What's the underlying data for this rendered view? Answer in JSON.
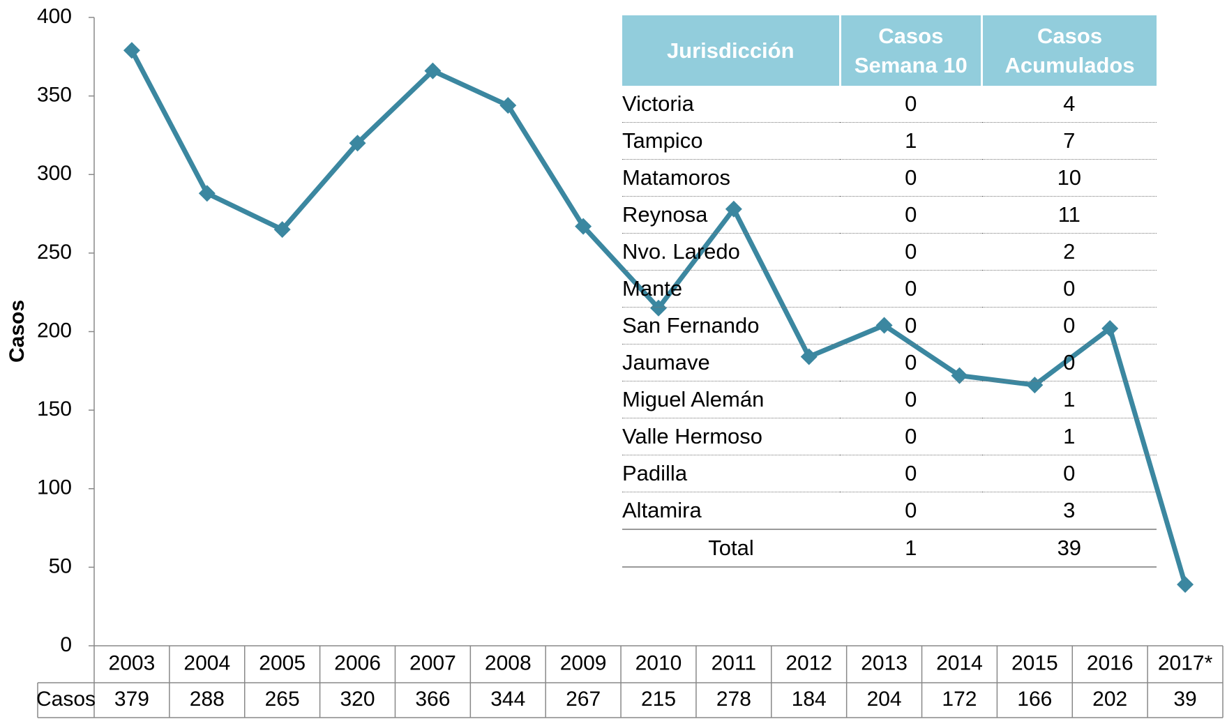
{
  "chart_data": {
    "type": "line",
    "ylabel": "Casos",
    "categories": [
      "2003",
      "2004",
      "2005",
      "2006",
      "2007",
      "2008",
      "2009",
      "2010",
      "2011",
      "2012",
      "2013",
      "2014",
      "2015",
      "2016",
      "2017*"
    ],
    "series": [
      {
        "name": "Casos",
        "color": "#3b87a0",
        "values": [
          379,
          288,
          265,
          320,
          366,
          344,
          267,
          215,
          278,
          184,
          204,
          172,
          166,
          202,
          39
        ]
      }
    ],
    "ylim": [
      0,
      400
    ],
    "yticks": [
      0,
      50,
      100,
      150,
      200,
      250,
      300,
      350,
      400
    ]
  },
  "table": {
    "headers": [
      "Jurisdicción",
      "Casos Semana 10",
      "Casos Acumulados"
    ],
    "rows": [
      [
        "Victoria",
        0,
        4
      ],
      [
        "Tampico",
        1,
        7
      ],
      [
        "Matamoros",
        0,
        10
      ],
      [
        "Reynosa",
        0,
        11
      ],
      [
        "Nvo. Laredo",
        0,
        2
      ],
      [
        "Mante",
        0,
        0
      ],
      [
        "San Fernando",
        0,
        0
      ],
      [
        "Jaumave",
        0,
        0
      ],
      [
        "Miguel Alemán",
        0,
        1
      ],
      [
        "Valle Hermoso",
        0,
        1
      ],
      [
        "Padilla",
        0,
        0
      ],
      [
        "Altamira",
        0,
        3
      ]
    ],
    "total": [
      "Total",
      1,
      39
    ]
  }
}
